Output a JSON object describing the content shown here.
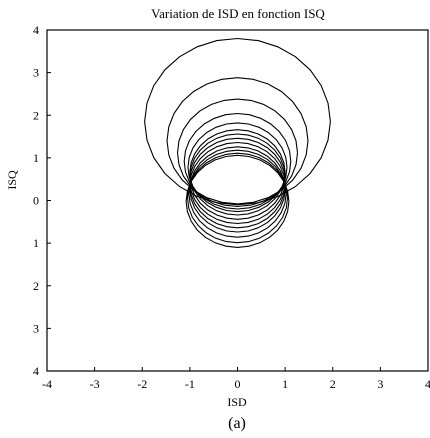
{
  "chart_data": {
    "type": "line",
    "title": "Variation de ISD en fonction ISQ",
    "xlabel": "ISD",
    "ylabel": "ISQ",
    "caption": "(a)",
    "xlim": [
      -4,
      4
    ],
    "ylim": [
      -4,
      4
    ],
    "xticks": [
      "-4",
      "-3",
      "-2",
      "-1",
      "0",
      "1",
      "2",
      "3",
      "4"
    ],
    "yticks": [
      "4",
      "3",
      "2",
      "1",
      "0",
      "1",
      "2",
      "3",
      "4"
    ],
    "grid": false,
    "legend": "none",
    "circles": [
      {
        "cx": 0.0,
        "cy": 1.85,
        "r": 1.95
      },
      {
        "cx": 0.0,
        "cy": 1.4,
        "r": 1.48
      },
      {
        "cx": 0.0,
        "cy": 1.12,
        "r": 1.26
      },
      {
        "cx": 0.0,
        "cy": 0.92,
        "r": 1.12
      },
      {
        "cx": 0.0,
        "cy": 0.78,
        "r": 1.04
      },
      {
        "cx": 0.0,
        "cy": 0.66,
        "r": 1.0
      },
      {
        "cx": 0.0,
        "cy": 0.56,
        "r": 1.0
      },
      {
        "cx": 0.0,
        "cy": 0.46,
        "r": 1.0
      },
      {
        "cx": 0.0,
        "cy": 0.36,
        "r": 1.0
      },
      {
        "cx": 0.0,
        "cy": 0.26,
        "r": 1.0
      },
      {
        "cx": 0.0,
        "cy": 0.16,
        "r": 1.02
      },
      {
        "cx": 0.0,
        "cy": 0.06,
        "r": 1.05
      },
      {
        "cx": 0.0,
        "cy": -0.02,
        "r": 1.08
      }
    ]
  }
}
